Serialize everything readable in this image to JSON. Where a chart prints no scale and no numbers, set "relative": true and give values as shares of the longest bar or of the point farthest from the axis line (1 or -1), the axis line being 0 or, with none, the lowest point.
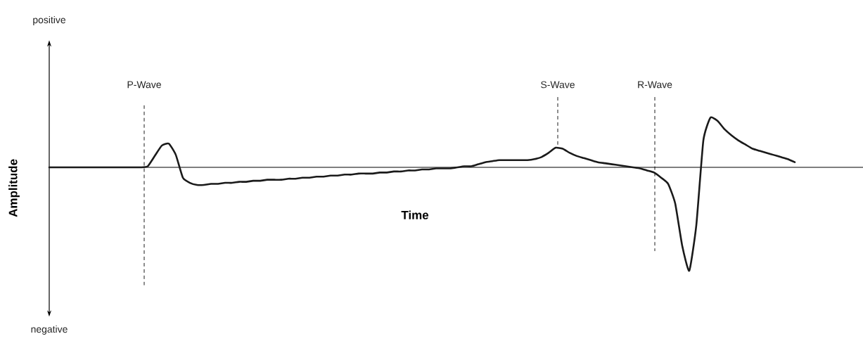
{
  "chart_data": {
    "type": "line",
    "relative": true,
    "xlabel": "Time",
    "ylabel": "Amplitude",
    "color": "#1a1a1a",
    "annotations": [
      "positive",
      "negative",
      "P-Wave",
      "S-Wave",
      "R-Wave"
    ],
    "categories": [
      null,
      null,
      null,
      null,
      null,
      null,
      null,
      null,
      null,
      null,
      null,
      null,
      null,
      null,
      null,
      null,
      null,
      null,
      null,
      null,
      null,
      null,
      null,
      null,
      null,
      null,
      null,
      null,
      null,
      null,
      null,
      null,
      null,
      null,
      null,
      null,
      null,
      null,
      null,
      null,
      null,
      null,
      null,
      null,
      null,
      null,
      null,
      null,
      null,
      null,
      null,
      null,
      null,
      null,
      null,
      null,
      null,
      null,
      null,
      null,
      null,
      null,
      null,
      null,
      null,
      null,
      null,
      null,
      null,
      null,
      null,
      null,
      null,
      null,
      null,
      null,
      null,
      null,
      null,
      null,
      null,
      null,
      null,
      null,
      null,
      null,
      null,
      null,
      null,
      null,
      null,
      null,
      null,
      null,
      null,
      null,
      null,
      null,
      null,
      null,
      null,
      null,
      null,
      null,
      null,
      null,
      null
    ],
    "values": [
      0,
      0,
      0,
      0,
      0,
      0,
      0,
      0,
      0,
      0,
      0,
      0,
      0,
      0,
      0.01,
      0.11,
      0.21,
      0.23,
      0.12,
      -0.1,
      -0.15,
      -0.17,
      -0.17,
      -0.16,
      -0.16,
      -0.15,
      -0.15,
      -0.14,
      -0.14,
      -0.13,
      -0.13,
      -0.12,
      -0.12,
      -0.12,
      -0.11,
      -0.11,
      -0.1,
      -0.1,
      -0.09,
      -0.09,
      -0.08,
      -0.08,
      -0.07,
      -0.07,
      -0.06,
      -0.06,
      -0.06,
      -0.05,
      -0.05,
      -0.04,
      -0.04,
      -0.03,
      -0.03,
      -0.02,
      -0.02,
      -0.01,
      -0.01,
      -0.01,
      0,
      0.01,
      0.01,
      0.03,
      0.05,
      0.06,
      0.07,
      0.07,
      0.07,
      0.07,
      0.07,
      0.08,
      0.1,
      0.14,
      0.19,
      0.18,
      0.14,
      0.11,
      0.09,
      0.07,
      0.05,
      0.04,
      0.03,
      0.02,
      0.01,
      0,
      -0.01,
      -0.03,
      -0.05,
      -0.1,
      -0.16,
      -0.35,
      -0.76,
      -1,
      -0.56,
      0.26,
      0.48,
      0.45,
      0.37,
      0.31,
      0.26,
      0.22,
      0.18,
      0.16,
      0.14,
      0.12,
      0.1,
      0.08,
      0.05
    ]
  }
}
